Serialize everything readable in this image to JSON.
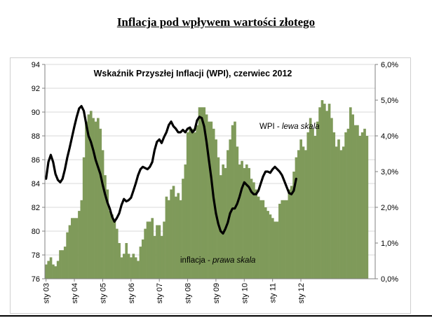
{
  "page": {
    "heading": "Inflacja pod wpływem wartości złotego"
  },
  "chart_data": {
    "type": "bar+line",
    "title": "Wskaźnik  Przyszłej Inflacji (WPI), czerwiec 2012",
    "left_axis": {
      "ylim": [
        76,
        94
      ],
      "ticks": [
        "76",
        "78",
        "80",
        "82",
        "84",
        "86",
        "88",
        "90",
        "92",
        "94"
      ]
    },
    "right_axis": {
      "ylim": [
        0,
        6
      ],
      "ticks": [
        "0,0%",
        "1,0%",
        "2,0%",
        "3,0%",
        "4,0%",
        "5,0%",
        "6,0%"
      ]
    },
    "x_ticks": [
      "sty 03",
      "sty 04",
      "sty 05",
      "sty 06",
      "sty 07",
      "sty 08",
      "sty 09",
      "sty 10",
      "sty 11",
      "sty 12"
    ],
    "grid": true,
    "colors": {
      "bars": "#7f9a5a",
      "line": "#000000",
      "plot_bg": "#ffffff",
      "grid": "#d9d9d9"
    },
    "series": [
      {
        "name": "inflacja",
        "axis": "right",
        "type": "bar",
        "label": "inflacja - prawa skala",
        "x_start": "sty 03",
        "values": [
          0.4,
          0.5,
          0.6,
          0.4,
          0.35,
          0.5,
          0.8,
          0.8,
          0.9,
          1.3,
          1.5,
          1.7,
          1.7,
          1.7,
          1.9,
          2.2,
          3.4,
          4.4,
          4.6,
          4.7,
          4.5,
          4.4,
          4.5,
          4.2,
          3.6,
          2.9,
          2.5,
          1.9,
          1.8,
          1.6,
          1.4,
          1.0,
          0.6,
          0.7,
          1.0,
          0.7,
          0.6,
          0.7,
          0.6,
          0.5,
          0.9,
          1.1,
          1.4,
          1.6,
          1.6,
          1.7,
          1.2,
          1.5,
          1.5,
          1.2,
          1.6,
          2.3,
          2.2,
          2.5,
          2.6,
          2.3,
          2.4,
          2.2,
          2.8,
          3.2,
          4.1,
          4.2,
          4.2,
          4.1,
          4.3,
          4.8,
          4.8,
          4.8,
          4.6,
          4.4,
          4.4,
          4.2,
          3.9,
          3.4,
          2.9,
          3.2,
          3.1,
          3.6,
          3.9,
          4.3,
          4.4,
          3.7,
          3.2,
          3.3,
          3.1,
          3.2,
          3.1,
          2.8,
          2.7,
          2.5,
          2.3,
          2.2,
          2.2,
          2.0,
          1.9,
          1.8,
          1.7,
          1.6,
          1.6,
          2.1,
          2.2,
          2.2,
          2.2,
          2.5,
          2.6,
          3.0,
          3.4,
          3.6,
          3.9,
          3.7,
          3.6,
          4.1,
          4.5,
          4.2,
          4.0,
          4.4,
          4.8,
          5.0,
          4.9,
          4.7,
          4.9,
          4.5,
          4.1,
          3.7,
          3.9,
          3.6,
          3.7,
          4.1,
          4.2,
          4.8,
          4.6,
          4.3,
          4.3,
          4.0,
          4.1,
          4.2,
          4.0
        ]
      },
      {
        "name": "WPI",
        "axis": "left",
        "type": "line",
        "label": "WPI - lewa skala",
        "x_start": "sty 03",
        "values": [
          84.4,
          85.8,
          86.4,
          85.8,
          84.8,
          84.3,
          84.1,
          84.4,
          85.2,
          86.2,
          87.0,
          87.9,
          88.8,
          89.6,
          90.3,
          90.5,
          90.1,
          89.0,
          88.0,
          87.5,
          86.8,
          86.0,
          85.4,
          84.8,
          83.9,
          83.1,
          82.4,
          81.9,
          81.2,
          80.8,
          81.1,
          81.5,
          82.2,
          82.7,
          82.5,
          82.6,
          82.8,
          83.4,
          84.0,
          84.7,
          85.2,
          85.4,
          85.3,
          85.2,
          85.4,
          85.8,
          86.8,
          87.5,
          87.7,
          87.4,
          87.9,
          88.3,
          88.9,
          89.2,
          88.8,
          88.6,
          88.3,
          88.3,
          88.5,
          88.3,
          88.6,
          88.7,
          88.3,
          88.5,
          89.3,
          89.6,
          89.5,
          88.8,
          87.5,
          86.0,
          84.5,
          82.8,
          81.5,
          80.6,
          80.0,
          79.8,
          80.2,
          80.7,
          81.5,
          81.9,
          81.9,
          82.3,
          82.9,
          83.6,
          84.1,
          83.9,
          83.7,
          83.3,
          83.1,
          83.1,
          83.4,
          84.0,
          84.6,
          85.0,
          85.0,
          84.9,
          85.2,
          85.4,
          85.2,
          85.0,
          84.7,
          84.2,
          83.7,
          83.2,
          83.1,
          83.4,
          84.4
        ]
      }
    ],
    "annotations": [
      {
        "text_normal": "WPI - ",
        "text_italic": "lewa skala"
      },
      {
        "text_normal": "inflacja - ",
        "text_italic": "prawa skala"
      }
    ]
  }
}
